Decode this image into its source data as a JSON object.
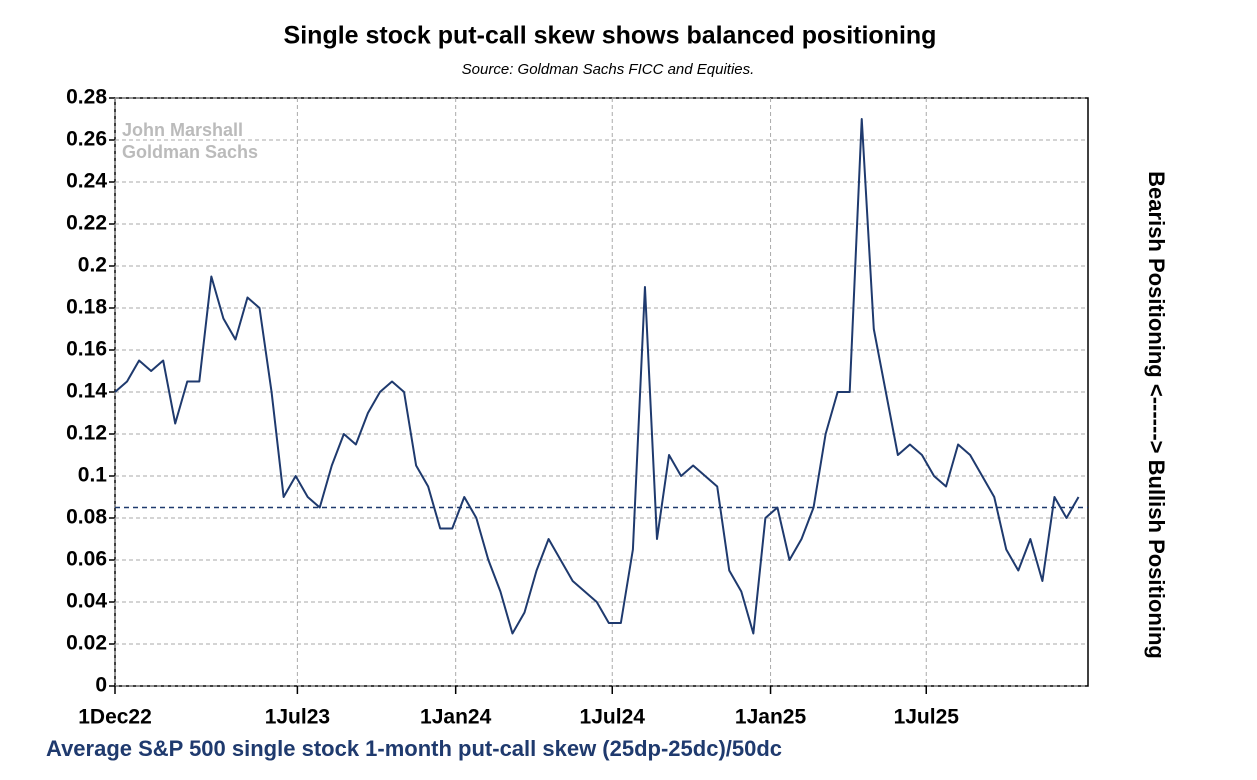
{
  "chart_data": {
    "type": "line",
    "title": "Single stock put-call skew shows balanced positioning",
    "subtitle": "Source: Goldman Sachs FICC and Equities.",
    "x_label": "Average S&P 500 single stock 1-month put-call skew (25dp-25dc)/50dc",
    "y2_label": "Bearish Positioning <------> Bullish Positioning",
    "watermark": [
      "John Marshall",
      "Goldman Sachs"
    ],
    "color": "#1f3a6e",
    "grid": true,
    "reference_line": 0.085,
    "xlim": [
      "2022-12-01",
      "2026-01-05"
    ],
    "xticks": [
      {
        "value": "2022-12-01",
        "label": "1Dec22"
      },
      {
        "value": "2023-07-01",
        "label": "1Jul23"
      },
      {
        "value": "2024-01-01",
        "label": "1Jan24"
      },
      {
        "value": "2024-07-01",
        "label": "1Jul24"
      },
      {
        "value": "2025-01-01",
        "label": "1Jan25"
      },
      {
        "value": "2025-07-01",
        "label": "1Jul25"
      }
    ],
    "ylim": [
      0,
      0.28
    ],
    "yticks": [
      0,
      0.02,
      0.04,
      0.06,
      0.08,
      0.1,
      0.12,
      0.14,
      0.16,
      0.18,
      0.2,
      0.22,
      0.24,
      0.26,
      0.28
    ],
    "x": [
      "2022-12-01",
      "2022-12-15",
      "2022-12-29",
      "2023-01-12",
      "2023-01-26",
      "2023-02-09",
      "2023-02-23",
      "2023-03-09",
      "2023-03-23",
      "2023-04-06",
      "2023-04-20",
      "2023-05-04",
      "2023-05-18",
      "2023-06-01",
      "2023-06-15",
      "2023-06-29",
      "2023-07-13",
      "2023-07-27",
      "2023-08-10",
      "2023-08-24",
      "2023-09-07",
      "2023-09-21",
      "2023-10-05",
      "2023-10-19",
      "2023-11-02",
      "2023-11-16",
      "2023-11-30",
      "2023-12-14",
      "2023-12-28",
      "2024-01-11",
      "2024-01-25",
      "2024-02-08",
      "2024-02-22",
      "2024-03-07",
      "2024-03-21",
      "2024-04-04",
      "2024-04-18",
      "2024-05-02",
      "2024-05-16",
      "2024-05-30",
      "2024-06-13",
      "2024-06-27",
      "2024-07-11",
      "2024-07-25",
      "2024-08-08",
      "2024-08-22",
      "2024-09-05",
      "2024-09-19",
      "2024-10-03",
      "2024-10-17",
      "2024-10-31",
      "2024-11-14",
      "2024-11-28",
      "2024-12-12",
      "2024-12-26",
      "2025-01-09",
      "2025-01-23",
      "2025-02-06",
      "2025-02-20",
      "2025-03-06",
      "2025-03-20",
      "2025-04-03",
      "2025-04-17",
      "2025-05-01",
      "2025-05-15",
      "2025-05-29",
      "2025-06-12",
      "2025-06-26",
      "2025-07-10",
      "2025-07-24",
      "2025-08-07",
      "2025-08-21",
      "2025-09-04",
      "2025-09-18",
      "2025-10-02",
      "2025-10-16",
      "2025-10-30",
      "2025-11-13",
      "2025-11-27",
      "2025-12-11",
      "2025-12-25"
    ],
    "values": [
      0.14,
      0.145,
      0.155,
      0.15,
      0.155,
      0.125,
      0.145,
      0.145,
      0.195,
      0.175,
      0.165,
      0.185,
      0.18,
      0.14,
      0.09,
      0.1,
      0.09,
      0.085,
      0.105,
      0.12,
      0.115,
      0.13,
      0.14,
      0.145,
      0.14,
      0.105,
      0.095,
      0.075,
      0.075,
      0.09,
      0.08,
      0.06,
      0.045,
      0.025,
      0.035,
      0.055,
      0.07,
      0.06,
      0.05,
      0.045,
      0.04,
      0.03,
      0.03,
      0.065,
      0.19,
      0.07,
      0.11,
      0.1,
      0.105,
      0.1,
      0.095,
      0.055,
      0.045,
      0.025,
      0.08,
      0.085,
      0.06,
      0.07,
      0.085,
      0.12,
      0.14,
      0.14,
      0.27,
      0.17,
      0.14,
      0.11,
      0.115,
      0.11,
      0.1,
      0.095,
      0.115,
      0.11,
      0.1,
      0.09,
      0.065,
      0.055,
      0.07,
      0.05,
      0.09,
      0.08,
      0.09
    ]
  }
}
